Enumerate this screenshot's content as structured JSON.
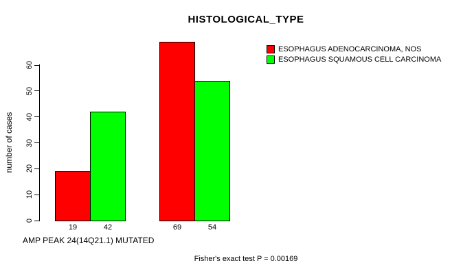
{
  "chart_data": {
    "type": "bar",
    "title": "HISTOLOGICAL_TYPE",
    "xlabel": "AMP PEAK 24(14Q21.1) MUTATED",
    "ylabel": "number of cases",
    "yticks": [
      0,
      10,
      20,
      30,
      40,
      50,
      60
    ],
    "ylim": [
      0,
      70
    ],
    "grid": false,
    "legend_position": "top-right",
    "series": [
      {
        "name": "ESOPHAGUS ADENOCARCINOMA, NOS",
        "color": "#ff0000",
        "values": [
          19,
          69
        ]
      },
      {
        "name": "ESOPHAGUS SQUAMOUS CELL CARCINOMA",
        "color": "#00ff00",
        "values": [
          42,
          54
        ]
      }
    ],
    "bar_value_labels": [
      "19",
      "42",
      "69",
      "54"
    ],
    "annotation": "Fisher's exact test P = 0.00169"
  },
  "colors": {
    "background": "#ffffff",
    "text": "#000000",
    "bar_border": "#000000",
    "red_series": "#ff0000",
    "green_series": "#00ff00"
  }
}
